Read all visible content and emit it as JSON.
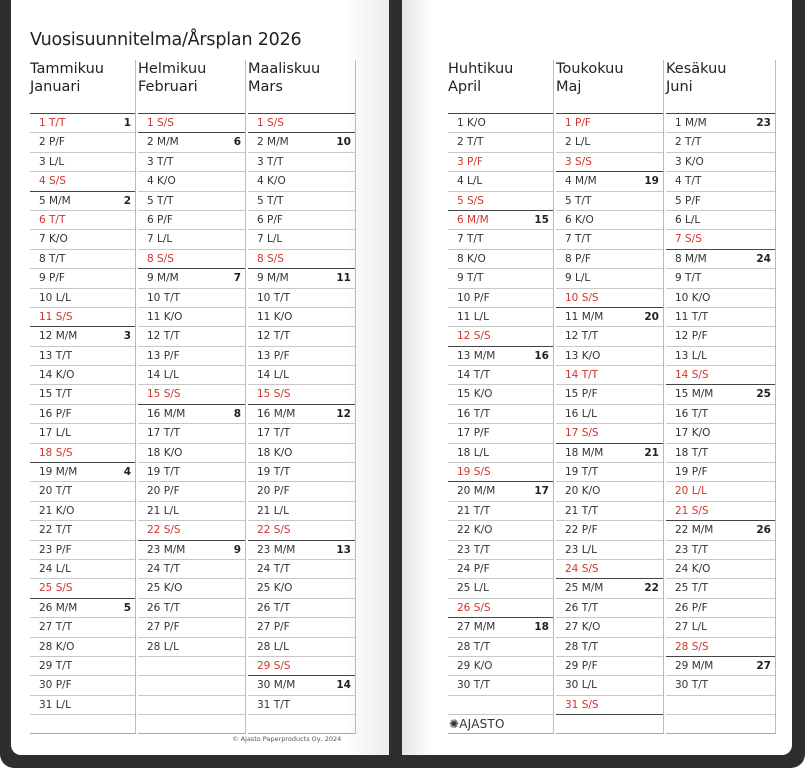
{
  "title": "Vuosisuunnitelma/Årsplan 2026",
  "copyright": "© Ajasto Paperproducts Oy, 2024",
  "logo": "AJASTO",
  "colors": {
    "holiday": "#d0342c",
    "frame": "#2e2e2e"
  },
  "months": [
    {
      "fi": "Tammikuu",
      "sv": "Januari",
      "days": [
        "1 T/T",
        "2 P/F",
        "3 L/L",
        "4 S/S",
        "5 M/M",
        "6 T/T",
        "7 K/O",
        "8 T/T",
        "9 P/F",
        "10 L/L",
        "11 S/S",
        "12 M/M",
        "13 T/T",
        "14 K/O",
        "15 T/T",
        "16 P/F",
        "17 L/L",
        "18 S/S",
        "19 M/M",
        "20 T/T",
        "21 K/O",
        "22 T/T",
        "23 P/F",
        "24 L/L",
        "25 S/S",
        "26 M/M",
        "27 T/T",
        "28 K/O",
        "29 T/T",
        "30 P/F",
        "31 L/L"
      ],
      "weeks": {
        "1": "1",
        "5": "2",
        "12": "3",
        "19": "4",
        "26": "5"
      },
      "red": [
        1,
        4,
        6,
        11,
        18,
        25
      ]
    },
    {
      "fi": "Helmikuu",
      "sv": "Februari",
      "days": [
        "1 S/S",
        "2 M/M",
        "3 T/T",
        "4 K/O",
        "5 T/T",
        "6 P/F",
        "7 L/L",
        "8 S/S",
        "9 M/M",
        "10 T/T",
        "11 K/O",
        "12 T/T",
        "13 P/F",
        "14 L/L",
        "15 S/S",
        "16 M/M",
        "17 T/T",
        "18 K/O",
        "19 T/T",
        "20 P/F",
        "21 L/L",
        "22 S/S",
        "23 M/M",
        "24 T/T",
        "25 K/O",
        "26 T/T",
        "27 P/F",
        "28 L/L"
      ],
      "weeks": {
        "2": "6",
        "9": "7",
        "16": "8",
        "23": "9"
      },
      "red": [
        1,
        8,
        15,
        22
      ]
    },
    {
      "fi": "Maaliskuu",
      "sv": "Mars",
      "days": [
        "1 S/S",
        "2 M/M",
        "3 T/T",
        "4 K/O",
        "5 T/T",
        "6 P/F",
        "7 L/L",
        "8 S/S",
        "9 M/M",
        "10 T/T",
        "11 K/O",
        "12 T/T",
        "13 P/F",
        "14 L/L",
        "15 S/S",
        "16 M/M",
        "17 T/T",
        "18 K/O",
        "19 T/T",
        "20 P/F",
        "21 L/L",
        "22 S/S",
        "23 M/M",
        "24 T/T",
        "25 K/O",
        "26 T/T",
        "27 P/F",
        "28 L/L",
        "29 S/S",
        "30 M/M",
        "31 T/T"
      ],
      "weeks": {
        "2": "10",
        "9": "11",
        "16": "12",
        "23": "13",
        "30": "14"
      },
      "red": [
        1,
        8,
        15,
        22,
        29
      ]
    },
    {
      "fi": "Huhtikuu",
      "sv": "April",
      "days": [
        "1 K/O",
        "2 T/T",
        "3 P/F",
        "4 L/L",
        "5 S/S",
        "6 M/M",
        "7 T/T",
        "8 K/O",
        "9 T/T",
        "10 P/F",
        "11 L/L",
        "12 S/S",
        "13 M/M",
        "14 T/T",
        "15 K/O",
        "16 T/T",
        "17 P/F",
        "18 L/L",
        "19 S/S",
        "20 M/M",
        "21 T/T",
        "22 K/O",
        "23 T/T",
        "24 P/F",
        "25 L/L",
        "26 S/S",
        "27 M/M",
        "28 T/T",
        "29 K/O",
        "30 T/T"
      ],
      "weeks": {
        "6": "15",
        "13": "16",
        "20": "17",
        "27": "18"
      },
      "red": [
        3,
        5,
        6,
        12,
        19,
        26
      ]
    },
    {
      "fi": "Toukokuu",
      "sv": "Maj",
      "days": [
        "1 P/F",
        "2 L/L",
        "3 S/S",
        "4 M/M",
        "5 T/T",
        "6 K/O",
        "7 T/T",
        "8 P/F",
        "9 L/L",
        "10 S/S",
        "11 M/M",
        "12 T/T",
        "13 K/O",
        "14 T/T",
        "15 P/F",
        "16 L/L",
        "17 S/S",
        "18 M/M",
        "19 T/T",
        "20 K/O",
        "21 T/T",
        "22 P/F",
        "23 L/L",
        "24 S/S",
        "25 M/M",
        "26 T/T",
        "27 K/O",
        "28 T/T",
        "29 P/F",
        "30 L/L",
        "31 S/S"
      ],
      "weeks": {
        "4": "19",
        "11": "20",
        "18": "21",
        "25": "22"
      },
      "red": [
        1,
        3,
        10,
        14,
        17,
        24,
        31
      ]
    },
    {
      "fi": "Kesäkuu",
      "sv": "Juni",
      "days": [
        "1 M/M",
        "2 T/T",
        "3 K/O",
        "4 T/T",
        "5 P/F",
        "6 L/L",
        "7 S/S",
        "8 M/M",
        "9 T/T",
        "10 K/O",
        "11 T/T",
        "12 P/F",
        "13 L/L",
        "14 S/S",
        "15 M/M",
        "16 T/T",
        "17 K/O",
        "18 T/T",
        "19 P/F",
        "20 L/L",
        "21 S/S",
        "22 M/M",
        "23 T/T",
        "24 K/O",
        "25 T/T",
        "26 P/F",
        "27 L/L",
        "28 S/S",
        "29 M/M",
        "30 T/T"
      ],
      "weeks": {
        "1": "23",
        "8": "24",
        "15": "25",
        "22": "26",
        "29": "27"
      },
      "red": [
        7,
        14,
        20,
        21,
        28
      ]
    }
  ]
}
